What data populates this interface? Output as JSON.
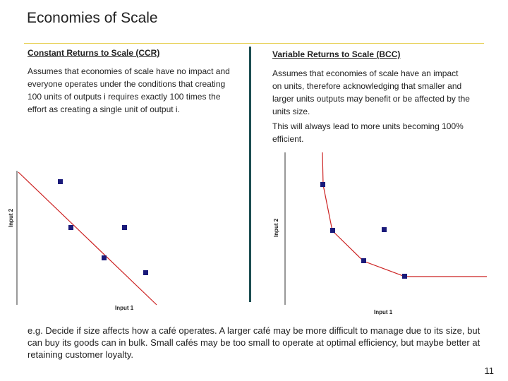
{
  "slide": {
    "title": "Economies of Scale",
    "page_number": "11",
    "footer": "e.g. Decide if size affects how a café operates. A larger café may be more difficult to manage due to its size, but can buy its goods can in bulk. Small cafés may be too small to operate at optimal efficiency, but maybe better at retaining customer loyalty."
  },
  "left": {
    "heading": "Constant Returns to Scale (CCR)",
    "body": "Assumes that economies of scale have no impact and everyone operates under the conditions that creating 100 units of outputs i requires exactly 100 times the effort as creating a single unit of output i."
  },
  "right": {
    "heading": "Variable Returns to Scale (BCC)",
    "body": "Assumes that economies of scale have an impact on units, therefore acknowledging that smaller and larger units outputs may benefit or be affected by the units size.",
    "body2": "This will always lead to more units becoming 100% efficient."
  },
  "ccr_chart": {
    "xlabel": "Input 1",
    "ylabel": "Input 2",
    "frontier_color": "#cc2222",
    "point_color": "#1a1a7a"
  },
  "bcc_chart": {
    "xlabel": "Input 1",
    "ylabel": "Input 2",
    "frontier_color": "#cc2222",
    "point_color": "#1a1a7a"
  }
}
